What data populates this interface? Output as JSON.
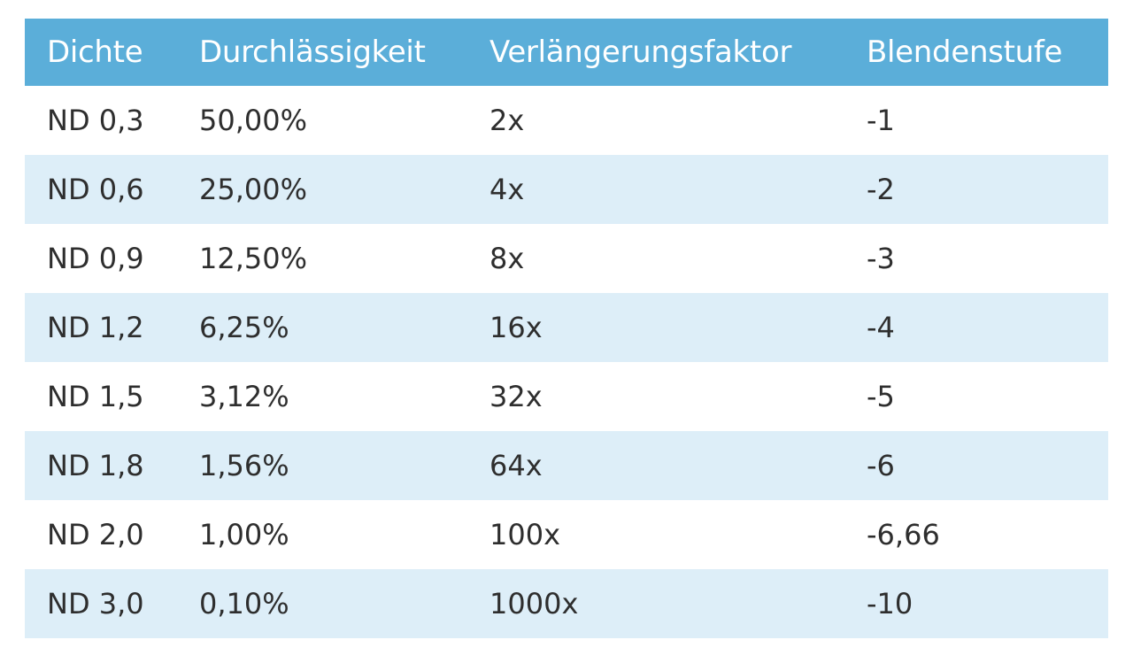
{
  "colors": {
    "header_bg": "#5baed9",
    "header_text": "#ffffff",
    "row_even_bg": "#ffffff",
    "row_odd_bg": "#ddeef8",
    "cell_text": "#2e2e2e"
  },
  "table": {
    "headers": [
      "Dichte",
      "Durchlässigkeit",
      "Verlängerungsfaktor",
      "Blendenstufe"
    ],
    "rows": [
      [
        "ND 0,3",
        "50,00%",
        "2x",
        "-1"
      ],
      [
        "ND 0,6",
        "25,00%",
        "4x",
        "-2"
      ],
      [
        "ND 0,9",
        "12,50%",
        "8x",
        "-3"
      ],
      [
        "ND 1,2",
        "6,25%",
        "16x",
        "-4"
      ],
      [
        "ND 1,5",
        "3,12%",
        "32x",
        "-5"
      ],
      [
        "ND 1,8",
        "1,56%",
        "64x",
        "-6"
      ],
      [
        "ND 2,0",
        "1,00%",
        "100x",
        "-6,66"
      ],
      [
        "ND 3,0",
        "0,10%",
        "1000x",
        "-10"
      ]
    ]
  }
}
